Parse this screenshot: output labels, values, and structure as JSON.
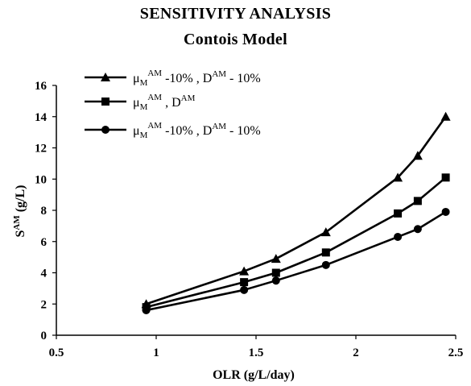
{
  "chart_data": {
    "type": "line",
    "title": "SENSITIVITY ANALYSIS",
    "subtitle": "Contois Model",
    "xlabel": "OLR (g/L/day)",
    "ylabel_main": "S",
    "ylabel_sup": "AM",
    "ylabel_rest": " (g/L)",
    "xlim": [
      0.5,
      2.5
    ],
    "ylim": [
      0,
      16
    ],
    "xticks": [
      "0.5",
      "1",
      "1.5",
      "2",
      "2.5"
    ],
    "yticks": [
      "0",
      "2",
      "4",
      "6",
      "8",
      "10",
      "12",
      "14",
      "16"
    ],
    "grid": false,
    "legend_position": "top-left",
    "x": [
      0.95,
      1.44,
      1.6,
      1.85,
      2.21,
      2.31,
      2.45
    ],
    "series": [
      {
        "name": "μ_M^AM -10% , D^AM - 10%",
        "marker": "triangle",
        "legend": {
          "mu": "μ",
          "mu_sub": "M",
          "mu_sup": "AM",
          "mid": " -10% , D",
          "d_sup": "AM",
          "tail": " - 10%"
        },
        "values": [
          2.0,
          4.1,
          4.9,
          6.6,
          10.1,
          11.5,
          14.0
        ]
      },
      {
        "name": "μ_M^AM , D^AM",
        "marker": "square",
        "legend": {
          "mu": "μ",
          "mu_sub": "M",
          "mu_sup": "AM",
          "mid": " , D",
          "d_sup": "AM",
          "tail": ""
        },
        "values": [
          1.8,
          3.4,
          4.0,
          5.3,
          7.8,
          8.6,
          10.1
        ]
      },
      {
        "name": "μ_M^AM -10% , D^AM - 10%",
        "marker": "circle",
        "legend": {
          "mu": "μ",
          "mu_sub": "M",
          "mu_sup": "AM",
          "mid": " -10% , D",
          "d_sup": "AM",
          "tail": " - 10%"
        },
        "values": [
          1.6,
          2.9,
          3.5,
          4.5,
          6.3,
          6.8,
          7.9
        ]
      }
    ]
  }
}
